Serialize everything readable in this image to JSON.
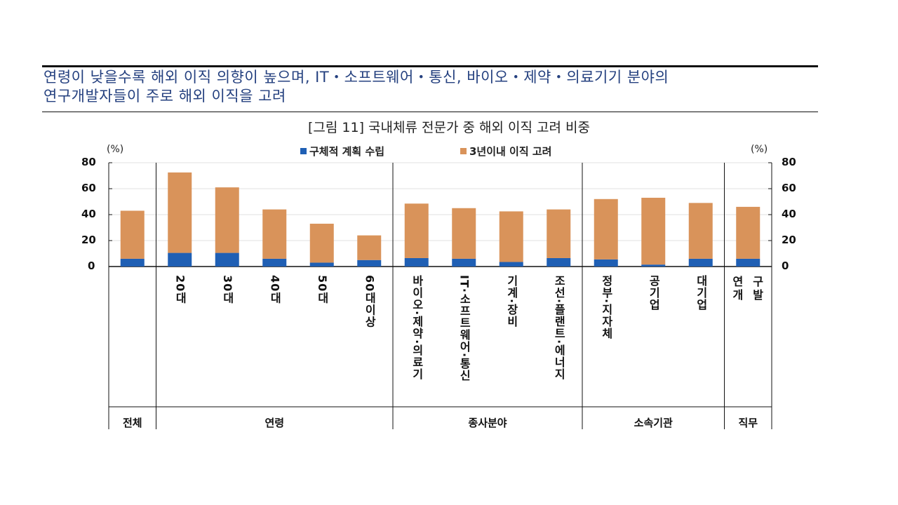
{
  "headline": "연령이 낮을수록 해외 이직 의향이 높으며, IT・소프트웨어・통신, 바이오・제약・의료기기 분야의\n연구개발자들이 주로 해외 이직을 고려",
  "chart_data": {
    "type": "bar",
    "stacked": true,
    "title": "[그림 11] 국내체류 전문가 중 해외 이직 고려 비중",
    "ylabel_left": "(%)",
    "ylabel_right": "(%)",
    "ylim": [
      0,
      80
    ],
    "yticks": [
      0,
      20,
      40,
      60,
      80
    ],
    "grid": true,
    "legend_position": "top",
    "categories": [
      "",
      "20대",
      "30대",
      "40대",
      "50대",
      "60대이상",
      "바이오·제약·의료기",
      "IT·소프트웨어·통신",
      "기계·장비",
      "조선·플랜트·에너지",
      "정부·지자체",
      "공기업",
      "대기업",
      "연구\n개발"
    ],
    "groups": [
      {
        "label": "전체",
        "count": 1
      },
      {
        "label": "연령",
        "count": 5
      },
      {
        "label": "종사분야",
        "count": 4
      },
      {
        "label": "소속기관",
        "count": 3
      },
      {
        "label": "직무",
        "count": 1
      }
    ],
    "series": [
      {
        "name": "구체적 계획 수립",
        "color": "#1f5fb4",
        "values": [
          6,
          10.5,
          10.5,
          6,
          3,
          5,
          6.5,
          6,
          3.5,
          6.5,
          5.5,
          1.5,
          6,
          6
        ]
      },
      {
        "name": "3년이내 이직 고려",
        "color": "#d9935a",
        "values": [
          37,
          62,
          50.5,
          38,
          30,
          19,
          42,
          39,
          39,
          37.5,
          46.5,
          51.5,
          43,
          40
        ]
      }
    ]
  }
}
